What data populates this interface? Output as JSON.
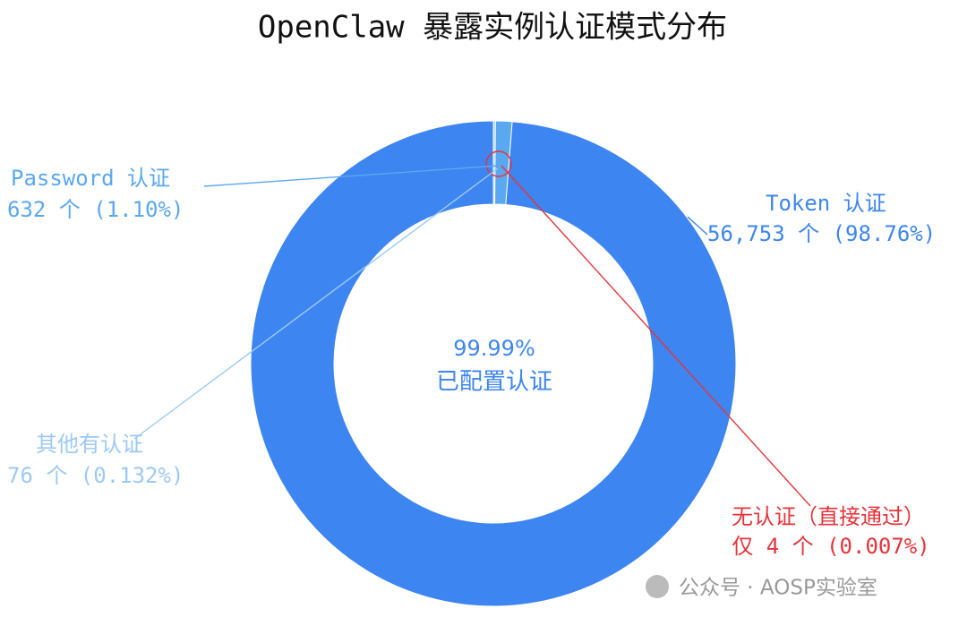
{
  "chart_data": {
    "type": "pie",
    "donut": true,
    "title": "OpenClaw 暴露实例认证模式分布",
    "categories": [
      "Token 认证",
      "Password 认证",
      "其他有认证",
      "无认证（直接通过）"
    ],
    "values": [
      56753,
      632,
      76,
      4
    ],
    "value_labels": [
      "56,753 个 (98.76%)",
      "632 个 (1.10%)",
      "76 个 (0.132%)",
      "仅 4 个 (0.007%)"
    ],
    "colors": [
      "#3d85f0",
      "#5aa8f0",
      "#9ccaf7",
      "#e8333a"
    ],
    "center_text": [
      "99.99%",
      "已配置认证"
    ]
  },
  "watermark": "公众号 · AOSP实验室"
}
